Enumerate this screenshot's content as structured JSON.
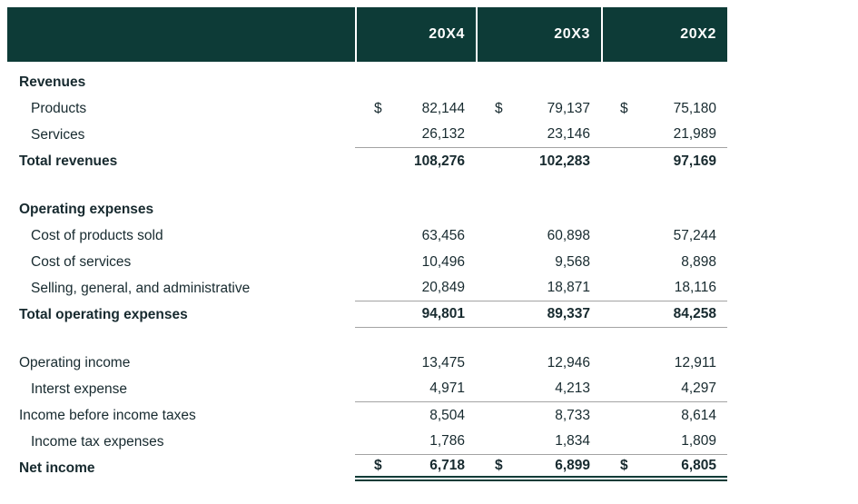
{
  "page": {
    "background": "#ffffff"
  },
  "table": {
    "currency_symbol": "$",
    "colors": {
      "header_bg": "#0d3b37",
      "header_text": "#ffffff",
      "body_text": "#172a2f",
      "rule": "#a3a3a3"
    },
    "columns": [
      "",
      "20X4",
      "20X3",
      "20X2"
    ],
    "rows": [
      {
        "label": "Revenues",
        "type": "section",
        "indent": 0,
        "dollar": false,
        "rule": "none",
        "values": [
          "",
          "",
          ""
        ]
      },
      {
        "label": "Products",
        "type": "item",
        "indent": 1,
        "dollar": true,
        "rule": "none",
        "values": [
          "82,144",
          "79,137",
          "75,180"
        ]
      },
      {
        "label": "Services",
        "type": "item",
        "indent": 1,
        "dollar": false,
        "rule": "bottom",
        "values": [
          "26,132",
          "23,146",
          "21,989"
        ]
      },
      {
        "label": "Total revenues",
        "type": "total",
        "indent": 0,
        "dollar": false,
        "rule": "none",
        "values": [
          "108,276",
          "102,283",
          "97,169"
        ]
      },
      {
        "label": "",
        "type": "spacer",
        "indent": 0,
        "dollar": false,
        "rule": "none",
        "values": [
          "",
          "",
          ""
        ]
      },
      {
        "label": "Operating expenses",
        "type": "section",
        "indent": 0,
        "dollar": false,
        "rule": "none",
        "values": [
          "",
          "",
          ""
        ]
      },
      {
        "label": "Cost of products sold",
        "type": "item",
        "indent": 1,
        "dollar": false,
        "rule": "none",
        "values": [
          "63,456",
          "60,898",
          "57,244"
        ]
      },
      {
        "label": "Cost of services",
        "type": "item",
        "indent": 1,
        "dollar": false,
        "rule": "none",
        "values": [
          "10,496",
          "9,568",
          "8,898"
        ]
      },
      {
        "label": "Selling, general, and administrative",
        "type": "item",
        "indent": 1,
        "dollar": false,
        "rule": "bottom",
        "values": [
          "20,849",
          "18,871",
          "18,116"
        ]
      },
      {
        "label": "Total operating expenses",
        "type": "total",
        "indent": 0,
        "dollar": false,
        "rule": "bottom",
        "values": [
          "94,801",
          "89,337",
          "84,258"
        ]
      },
      {
        "label": "",
        "type": "spacer",
        "indent": 0,
        "dollar": false,
        "rule": "none",
        "values": [
          "",
          "",
          ""
        ]
      },
      {
        "label": "Operating income",
        "type": "item",
        "indent": 0,
        "dollar": false,
        "rule": "none",
        "values": [
          "13,475",
          "12,946",
          "12,911"
        ]
      },
      {
        "label": "Interst expense",
        "type": "item",
        "indent": 1,
        "dollar": false,
        "rule": "bottom",
        "values": [
          "4,971",
          "4,213",
          "4,297"
        ]
      },
      {
        "label": "Income before income taxes",
        "type": "item",
        "indent": 0,
        "dollar": false,
        "rule": "none",
        "values": [
          "8,504",
          "8,733",
          "8,614"
        ]
      },
      {
        "label": "Income tax expenses",
        "type": "item",
        "indent": 1,
        "dollar": false,
        "rule": "bottom",
        "values": [
          "1,786",
          "1,834",
          "1,809"
        ]
      },
      {
        "label": "Net income",
        "type": "total",
        "indent": 0,
        "dollar": true,
        "rule": "double",
        "values": [
          "6,718",
          "6,899",
          "6,805"
        ]
      }
    ]
  },
  "chart_data": {
    "type": "table",
    "columns": [
      "",
      "20X4",
      "20X3",
      "20X2"
    ],
    "rows": [
      [
        "Revenues",
        null,
        null,
        null
      ],
      [
        "Products",
        82144,
        79137,
        75180
      ],
      [
        "Services",
        26132,
        23146,
        21989
      ],
      [
        "Total revenues",
        108276,
        102283,
        97169
      ],
      [
        "Operating expenses",
        null,
        null,
        null
      ],
      [
        "Cost of products sold",
        63456,
        60898,
        57244
      ],
      [
        "Cost of services",
        10496,
        9568,
        8898
      ],
      [
        "Selling, general, and administrative",
        20849,
        18871,
        18116
      ],
      [
        "Total operating expenses",
        94801,
        89337,
        84258
      ],
      [
        "Operating income",
        13475,
        12946,
        12911
      ],
      [
        "Interst expense",
        4971,
        4213,
        4297
      ],
      [
        "Income before income taxes",
        8504,
        8733,
        8614
      ],
      [
        "Income tax expenses",
        1786,
        1834,
        1809
      ],
      [
        "Net income",
        6718,
        6899,
        6805
      ]
    ]
  }
}
